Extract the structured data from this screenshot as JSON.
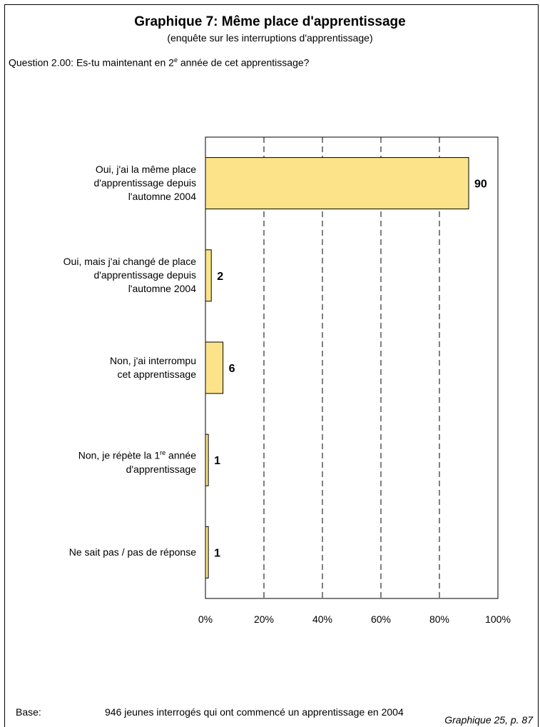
{
  "title": "Graphique 7: Même place d'apprentissage",
  "subtitle": "(enquête sur les interruptions d'apprentissage)",
  "question": {
    "prefix": "Question 2.00:  Es-tu maintenant en 2",
    "sup": "e",
    "suffix": " année de cet apprentissage?"
  },
  "chart_data": {
    "type": "bar",
    "orientation": "horizontal",
    "categories": [
      {
        "lines": [
          "Oui, j'ai la même place",
          "d'apprentissage depuis",
          "l'automne 2004"
        ]
      },
      {
        "lines": [
          "Oui, mais j'ai changé de place",
          "d'apprentissage depuis",
          "l'automne 2004"
        ]
      },
      {
        "lines": [
          "Non, j'ai interrompu",
          "cet apprentissage"
        ]
      },
      {
        "lines": [
          "Non, je répète la 1",
          "d'apprentissage"
        ],
        "sup": "re",
        "sup_after": " année"
      },
      {
        "lines": [
          "Ne sait pas / pas de réponse"
        ]
      }
    ],
    "values": [
      90,
      2,
      6,
      1,
      1
    ],
    "data_labels": [
      "90",
      "2",
      "6",
      "1",
      "1"
    ],
    "xlim": [
      0,
      100
    ],
    "ticks": [
      0,
      20,
      40,
      60,
      80,
      100
    ],
    "tick_labels": [
      "0%",
      "20%",
      "40%",
      "60%",
      "80%",
      "100%"
    ],
    "grid": "vertical-dashed",
    "bar_color": "#FCE38A",
    "bar_edge_color": "#000000"
  },
  "footer": {
    "base_label": "Base:",
    "base_text": "946 jeunes interrogés qui ont commencé un apprentissage en 2004",
    "source": "Graphique 25, p. 87"
  }
}
